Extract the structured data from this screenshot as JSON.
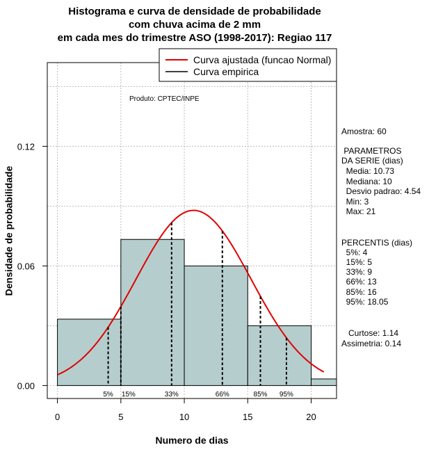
{
  "titles": [
    "Histograma e curva de densidade de probabilidade",
    "com chuva acima de 2 mm",
    "em cada mes do trimestre ASO (1998-2017): Regiao 117"
  ],
  "credit": "Produto: CPTEC/INPE",
  "side_panel": {
    "sample": "Amostra: 60",
    "params_title_1": " PARAMETROS",
    "params_title_2": "DA SERIE (dias)",
    "media": "  Media: 10.73",
    "mediana": "  Mediana: 10",
    "desvio": "  Desvio padrao: 4.54",
    "min": "  Min: 3",
    "max": "  Max: 21",
    "percentis_title": "PERCENTIS (dias)",
    "p5": "  5%: 4",
    "p15": "  15%: 5",
    "p33": "  33%: 9",
    "p66": "  66%: 13",
    "p85": "  85%: 16",
    "p95": "  95%: 18.05",
    "curtose": "   Curtose: 1.14",
    "assimetria": "Assimetria: 0.14"
  },
  "colors": {
    "bar_fill": "#b5cecd",
    "normal_curve": "#e00000",
    "grid": "#bbbbbb"
  },
  "chart_data": {
    "type": "bar",
    "xlabel": "Numero de dias",
    "ylabel": "Densidade de probabilidade",
    "xlim": [
      -0.8,
      22
    ],
    "ylim": [
      -0.0065,
      0.162
    ],
    "x_ticks": [
      0,
      5,
      10,
      15,
      20
    ],
    "y_ticks": [
      0.0,
      0.06,
      0.12
    ],
    "y_tick_labels": [
      "0.00",
      "0.06",
      "0.12"
    ],
    "grid": true,
    "legend_position": "top-right",
    "legend": [
      {
        "label": "Curva ajustada (funcao Normal)",
        "color": "#e00000"
      },
      {
        "label": "Curva empirica",
        "color": "#000000"
      }
    ],
    "bins": [
      {
        "start": 0,
        "end": 5,
        "density": 0.0333
      },
      {
        "start": 5,
        "end": 10,
        "density": 0.0733
      },
      {
        "start": 10,
        "end": 15,
        "density": 0.06
      },
      {
        "start": 15,
        "end": 20,
        "density": 0.03
      },
      {
        "start": 20,
        "end": 22,
        "density": 0.0033
      }
    ],
    "normal_fit": {
      "mean": 10.73,
      "sd": 4.54,
      "x_range": [
        0,
        21
      ]
    },
    "percentiles": [
      {
        "label": "5%",
        "value": 4
      },
      {
        "label": "15%",
        "value": 5
      },
      {
        "label": "33%",
        "value": 9
      },
      {
        "label": "66%",
        "value": 13
      },
      {
        "label": "85%",
        "value": 16
      },
      {
        "label": "95%",
        "value": 18.05
      }
    ]
  }
}
